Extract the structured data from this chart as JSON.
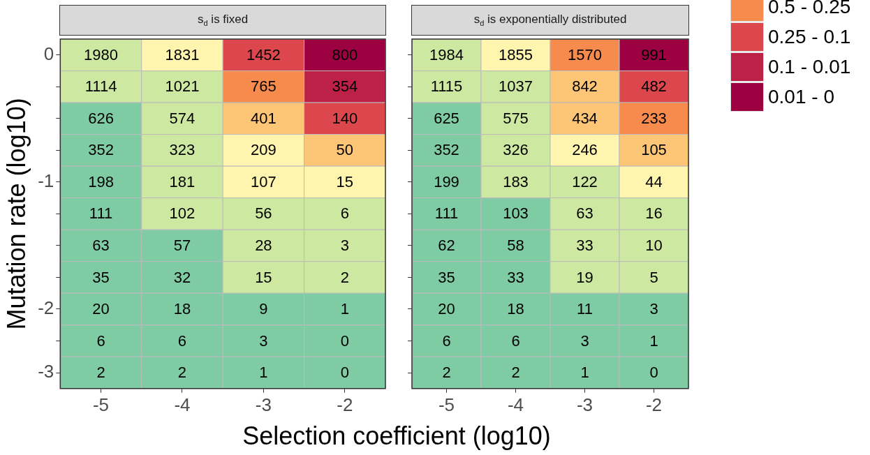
{
  "chart_data": [
    {
      "type": "heatmap",
      "data_labels": true,
      "title": "s$_{d}$ is fixed",
      "xlabel": "Selection coefficient (log10)",
      "ylabel": "Mutation rate (log10)",
      "categories": [
        "-5",
        "-4",
        "-3",
        "-2"
      ],
      "y_categories": [
        "0",
        null,
        null,
        null,
        "-1",
        null,
        null,
        null,
        "-2",
        null,
        "-3"
      ],
      "cells": [
        [
          1980,
          1831,
          1452,
          800
        ],
        [
          1114,
          1021,
          765,
          354
        ],
        [
          626,
          574,
          401,
          140
        ],
        [
          352,
          323,
          209,
          50
        ],
        [
          198,
          181,
          107,
          15
        ],
        [
          111,
          102,
          56,
          6
        ],
        [
          63,
          57,
          28,
          3
        ],
        [
          35,
          32,
          15,
          2
        ],
        [
          20,
          18,
          9,
          1
        ],
        [
          6,
          6,
          3,
          0
        ],
        [
          2,
          2,
          1,
          0
        ]
      ],
      "colors": [
        [
          "#cde8a0",
          "#fff5ae",
          "#dc474e",
          "#9e0142"
        ],
        [
          "#cde8a0",
          "#cde8a0",
          "#f78a4d",
          "#be2148"
        ],
        [
          "#7ecba4",
          "#cde8a0",
          "#fdc576",
          "#dc474e"
        ],
        [
          "#7ecba4",
          "#cde8a0",
          "#fff5ae",
          "#fdc576"
        ],
        [
          "#7ecba4",
          "#cde8a0",
          "#fff5ae",
          "#fff5ae"
        ],
        [
          "#7ecba4",
          "#cde8a0",
          "#cde8a0",
          "#cde8a0"
        ],
        [
          "#7ecba4",
          "#7ecba4",
          "#cde8a0",
          "#cde8a0"
        ],
        [
          "#7ecba4",
          "#7ecba4",
          "#cde8a0",
          "#cde8a0"
        ],
        [
          "#7ecba4",
          "#7ecba4",
          "#7ecba4",
          "#7ecba4"
        ],
        [
          "#7ecba4",
          "#7ecba4",
          "#7ecba4",
          "#7ecba4"
        ],
        [
          "#7ecba4",
          "#7ecba4",
          "#7ecba4",
          "#7ecba4"
        ]
      ]
    },
    {
      "type": "heatmap",
      "data_labels": true,
      "title": "s$_{d}$ is exponentially distributed",
      "tick_labels": "x",
      "legend": "right",
      "categories": [
        "-5",
        "-4",
        "-3",
        "-2"
      ],
      "y_categories": [
        "0",
        null,
        null,
        null,
        "-1",
        null,
        null,
        null,
        "-2",
        null,
        "-3"
      ],
      "cells": [
        [
          1984,
          1855,
          1570,
          991
        ],
        [
          1115,
          1037,
          842,
          482
        ],
        [
          625,
          575,
          434,
          233
        ],
        [
          352,
          326,
          246,
          105
        ],
        [
          199,
          183,
          122,
          44
        ],
        [
          111,
          103,
          63,
          16
        ],
        [
          62,
          58,
          33,
          10
        ],
        [
          35,
          33,
          19,
          5
        ],
        [
          20,
          18,
          11,
          3
        ],
        [
          6,
          6,
          3,
          1
        ],
        [
          2,
          2,
          1,
          0
        ]
      ],
      "colors": [
        [
          "#cde8a0",
          "#fff5ae",
          "#f78a4d",
          "#9e0142"
        ],
        [
          "#cde8a0",
          "#cde8a0",
          "#fdc576",
          "#dc474e"
        ],
        [
          "#7ecba4",
          "#cde8a0",
          "#fdc576",
          "#f78a4d"
        ],
        [
          "#7ecba4",
          "#cde8a0",
          "#fff5ae",
          "#fdc576"
        ],
        [
          "#7ecba4",
          "#cde8a0",
          "#cde8a0",
          "#fff5ae"
        ],
        [
          "#7ecba4",
          "#7ecba4",
          "#cde8a0",
          "#cde8a0"
        ],
        [
          "#7ecba4",
          "#7ecba4",
          "#cde8a0",
          "#cde8a0"
        ],
        [
          "#7ecba4",
          "#7ecba4",
          "#cde8a0",
          "#cde8a0"
        ],
        [
          "#7ecba4",
          "#7ecba4",
          "#7ecba4",
          "#7ecba4"
        ],
        [
          "#7ecba4",
          "#7ecba4",
          "#7ecba4",
          "#7ecba4"
        ],
        [
          "#7ecba4",
          "#7ecba4",
          "#7ecba4",
          "#7ecba4"
        ]
      ],
      "series": [
        {
          "name": "0.5 - 0.25",
          "color": "#f78a4d",
          "values": [
            null,
            null,
            null,
            null
          ]
        },
        {
          "name": "0.25 - 0.1",
          "color": "#dc474e",
          "values": [
            null,
            null,
            null,
            null
          ]
        },
        {
          "name": "0.1 - 0.01",
          "color": "#be2148",
          "values": [
            null,
            null,
            null,
            null
          ]
        },
        {
          "name": "0.01 - 0",
          "color": "#9e0142",
          "values": [
            null,
            null,
            null,
            null
          ]
        }
      ]
    }
  ]
}
